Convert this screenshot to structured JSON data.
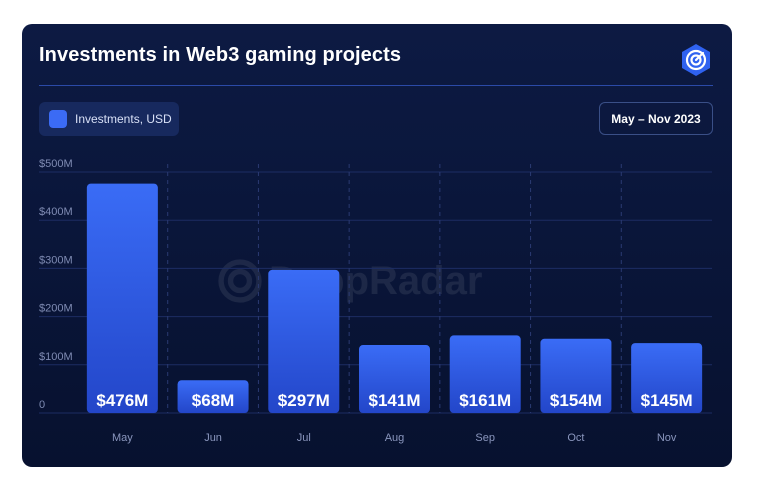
{
  "header": {
    "title": "Investments in Web3 gaming projects",
    "logo_icon": "dappradar-radar-icon",
    "watermark": "DappRadar"
  },
  "legend": {
    "label": "Investments, USD",
    "color": "#3b6bf5"
  },
  "period": "May – Nov 2023",
  "colors": {
    "background": "#0a163a",
    "bar_top": "#3a6cf6",
    "bar_bottom": "#2346c9",
    "accent": "#2b4aa8"
  },
  "chart_data": {
    "type": "bar",
    "title": "Investments in Web3 gaming projects",
    "xlabel": "",
    "ylabel": "",
    "categories": [
      "May",
      "Jun",
      "Jul",
      "Aug",
      "Sep",
      "Oct",
      "Nov"
    ],
    "series": [
      {
        "name": "Investments, USD",
        "values": [
          476,
          68,
          297,
          141,
          161,
          154,
          145
        ],
        "labels": [
          "$476M",
          "$68M",
          "$297M",
          "$141M",
          "$161M",
          "$154M",
          "$145M"
        ]
      }
    ],
    "unit": "USD millions",
    "ylim": [
      0,
      500
    ],
    "yticks": [
      0,
      100,
      200,
      300,
      400,
      500
    ],
    "ytick_labels": [
      "0",
      "$100M",
      "$200M",
      "$300M",
      "$400M",
      "$500M"
    ],
    "grid": true,
    "legend_position": "top-left"
  }
}
